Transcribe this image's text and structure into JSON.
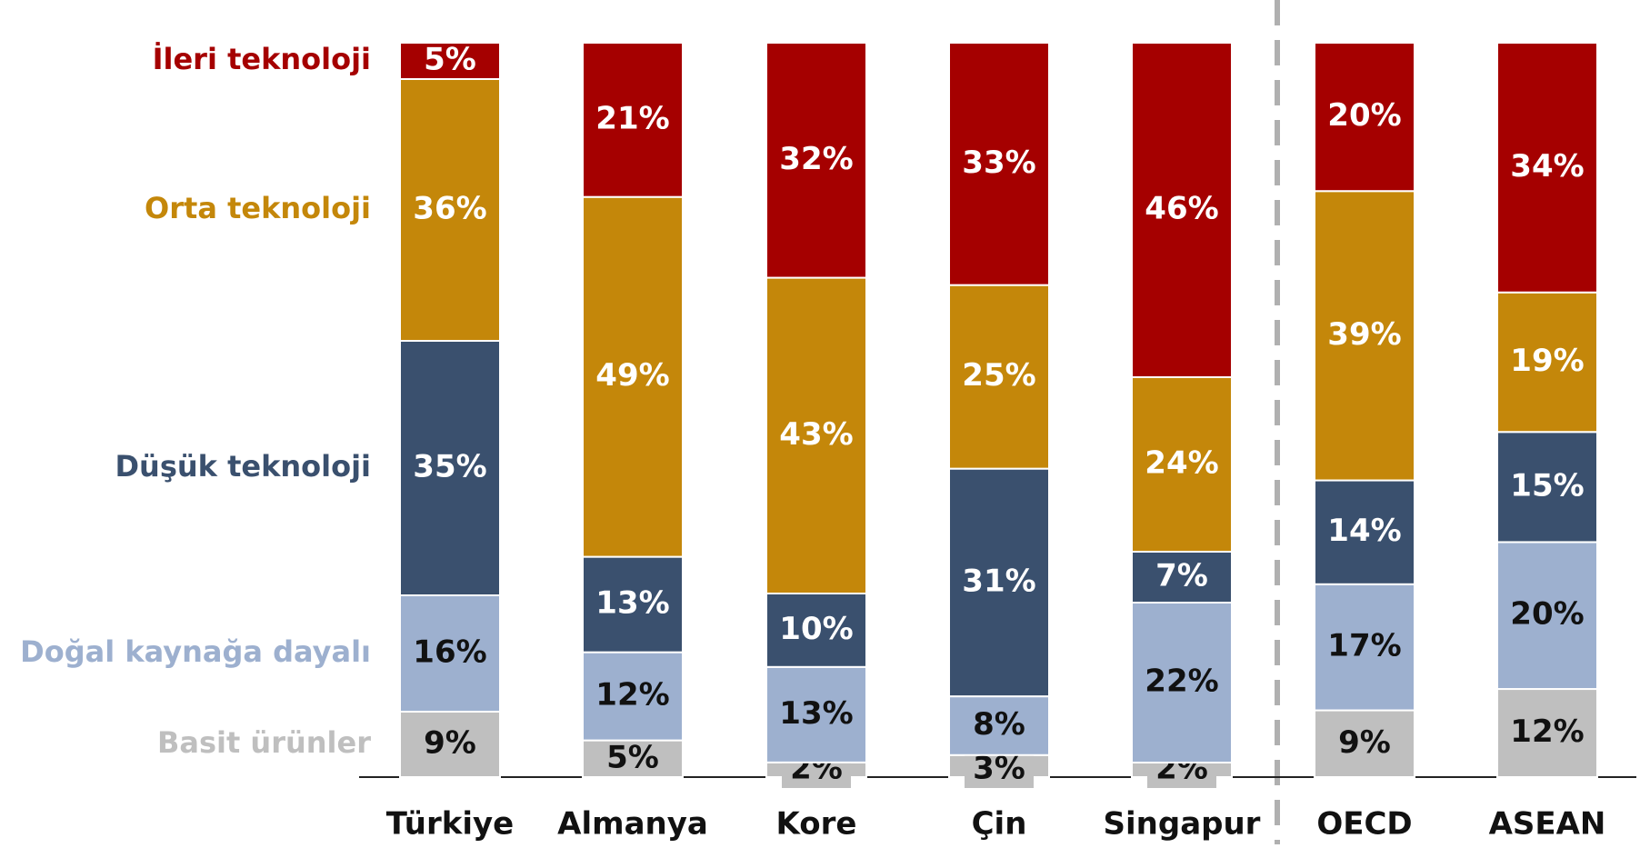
{
  "chart_data": {
    "type": "bar",
    "stacked": true,
    "categories": [
      "Türkiye",
      "Almanya",
      "Kore",
      "Çin",
      "Singapur",
      "OECD",
      "ASEAN"
    ],
    "series": [
      {
        "name": "Basit ürünler",
        "color": "#bfbfbf",
        "values": [
          9,
          5,
          2,
          3,
          2,
          9,
          12
        ],
        "value_labels": [
          "9%",
          "5%",
          "2%",
          "3%",
          "2%",
          "9%",
          "12%"
        ]
      },
      {
        "name": "Doğal kaynağa dayalı",
        "color": "#9db0cf",
        "values": [
          16,
          12,
          13,
          8,
          22,
          17,
          20
        ],
        "value_labels": [
          "16%",
          "12%",
          "13%",
          "8%",
          "22%",
          "17%",
          "20%"
        ]
      },
      {
        "name": "Düşük teknoloji",
        "color": "#3a506e",
        "values": [
          35,
          13,
          10,
          31,
          7,
          14,
          15
        ],
        "value_labels": [
          "35%",
          "13%",
          "10%",
          "31%",
          "7%",
          "14%",
          "15%"
        ]
      },
      {
        "name": "Orta teknoloji",
        "color": "#c4870a",
        "values": [
          36,
          49,
          43,
          25,
          24,
          39,
          19
        ],
        "value_labels": [
          "36%",
          "49%",
          "43%",
          "25%",
          "24%",
          "39%",
          "19%"
        ]
      },
      {
        "name": "İleri teknoloji",
        "color": "#a50000",
        "values": [
          5,
          21,
          32,
          33,
          46,
          20,
          34
        ],
        "value_labels": [
          "5%",
          "21%",
          "32%",
          "33%",
          "46%",
          "20%",
          "34%"
        ]
      }
    ]
  }
}
